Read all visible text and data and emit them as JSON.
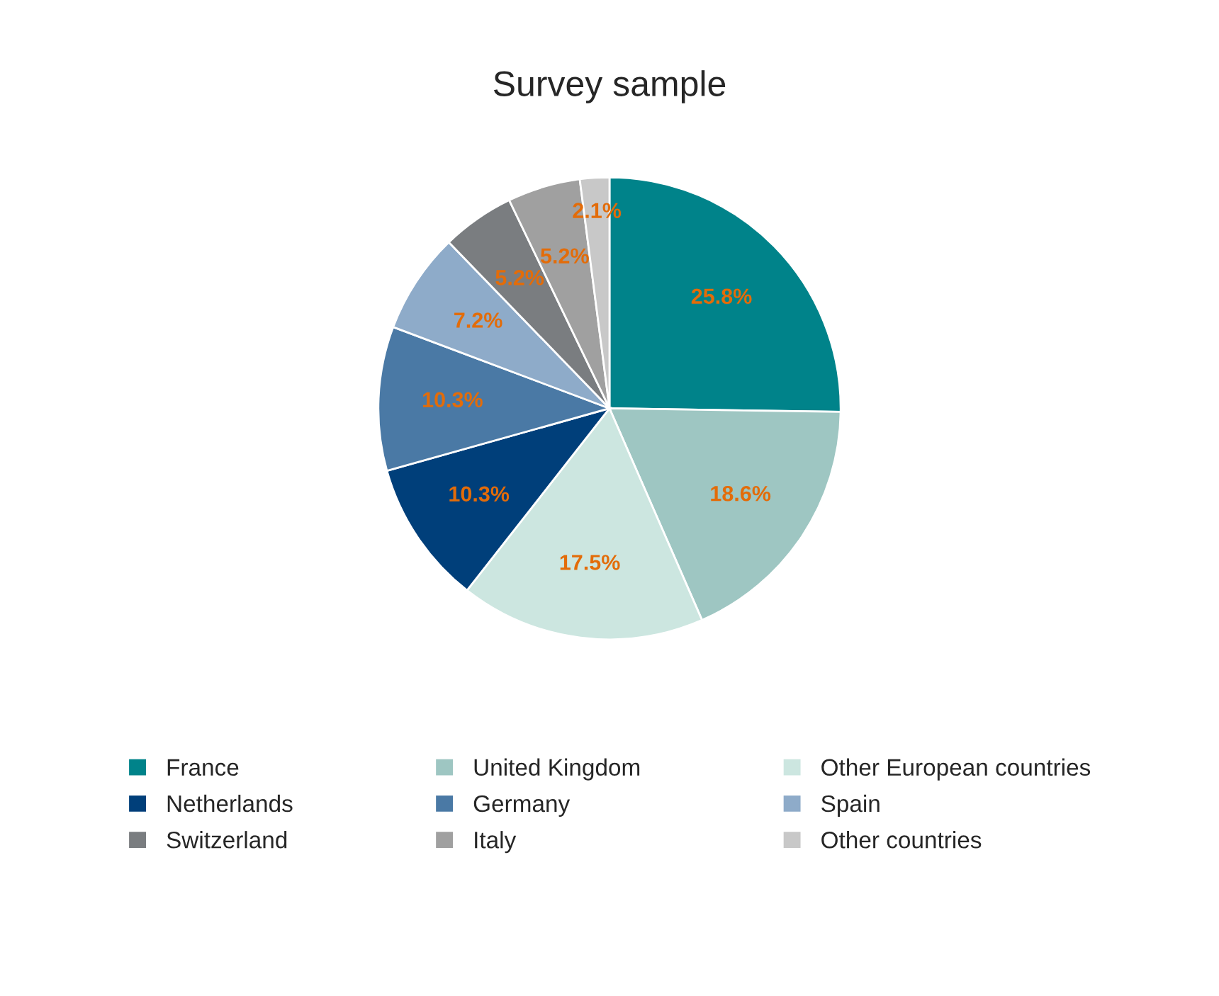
{
  "chart_data": {
    "type": "pie",
    "title": "Survey sample",
    "categories": [
      "France",
      "United Kingdom",
      "Other European countries",
      "Netherlands",
      "Germany",
      "Spain",
      "Switzerland",
      "Italy",
      "Other countries"
    ],
    "values": [
      25.8,
      18.6,
      17.5,
      10.3,
      10.3,
      7.2,
      5.2,
      5.2,
      2.1
    ],
    "value_labels": [
      "25.8%",
      "18.6%",
      "17.5%",
      "10.3%",
      "10.3%",
      "7.2%",
      "5.2%",
      "5.2%",
      "2.1%"
    ],
    "colors": [
      "#00838a",
      "#9ec6c2",
      "#cce6e0",
      "#003f7a",
      "#4a79a5",
      "#8eabc9",
      "#7a7d80",
      "#a0a0a0",
      "#c8c8c8"
    ],
    "legend": "bottom"
  }
}
